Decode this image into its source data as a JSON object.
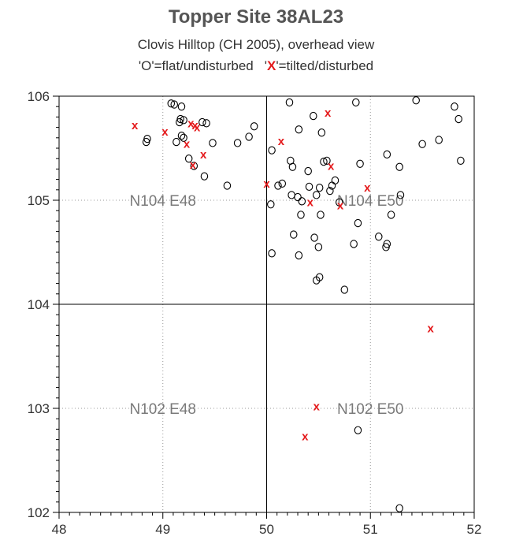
{
  "chart_data": {
    "type": "scatter",
    "title": "Topper Site 38AL23",
    "subtitle": "Clovis Hilltop (CH 2005), overhead view",
    "legend": {
      "prefix_o": "'O'",
      "text_o": "=flat/undisturbed",
      "prefix_x_open": "'",
      "marker_x": "X",
      "text_x": "'=tilted/disturbed"
    },
    "xlim": [
      48,
      52
    ],
    "ylim": [
      102,
      106
    ],
    "x_ticks": [
      "48",
      "49",
      "50",
      "51",
      "52"
    ],
    "y_ticks": [
      "102",
      "103",
      "104",
      "105",
      "106"
    ],
    "x_tick_values": [
      48,
      49,
      50,
      51,
      52
    ],
    "y_tick_values": [
      102,
      103,
      104,
      105,
      106
    ],
    "quadrant_labels": [
      {
        "text": "N104 E48",
        "x": 49,
        "y": 105
      },
      {
        "text": "N104 E50",
        "x": 51,
        "y": 105
      },
      {
        "text": "N102 E48",
        "x": 49,
        "y": 103
      },
      {
        "text": "N102 E50",
        "x": 51,
        "y": 103
      }
    ],
    "colors": {
      "flat": "#000000",
      "tilted": "#e41a1c",
      "grid": "#999999",
      "axis": "#000000"
    },
    "series": [
      {
        "marker": "O",
        "points": [
          [
            49.08,
            105.93
          ],
          [
            49.11,
            105.92
          ],
          [
            49.18,
            105.9
          ],
          [
            49.17,
            105.78
          ],
          [
            49.2,
            105.77
          ],
          [
            49.16,
            105.75
          ],
          [
            49.38,
            105.75
          ],
          [
            49.42,
            105.74
          ],
          [
            49.88,
            105.71
          ],
          [
            49.18,
            105.62
          ],
          [
            49.2,
            105.6
          ],
          [
            48.85,
            105.59
          ],
          [
            48.84,
            105.56
          ],
          [
            49.13,
            105.56
          ],
          [
            49.48,
            105.55
          ],
          [
            49.72,
            105.55
          ],
          [
            49.83,
            105.61
          ],
          [
            49.25,
            105.4
          ],
          [
            49.3,
            105.33
          ],
          [
            49.4,
            105.23
          ],
          [
            49.62,
            105.14
          ],
          [
            50.22,
            105.94
          ],
          [
            50.45,
            105.81
          ],
          [
            50.31,
            105.68
          ],
          [
            50.53,
            105.65
          ],
          [
            50.05,
            105.48
          ],
          [
            50.23,
            105.38
          ],
          [
            50.25,
            105.32
          ],
          [
            50.4,
            105.28
          ],
          [
            50.55,
            105.37
          ],
          [
            50.58,
            105.38
          ],
          [
            50.66,
            105.19
          ],
          [
            50.63,
            105.14
          ],
          [
            50.11,
            105.14
          ],
          [
            50.15,
            105.16
          ],
          [
            50.41,
            105.13
          ],
          [
            50.51,
            105.12
          ],
          [
            50.24,
            105.05
          ],
          [
            50.3,
            105.03
          ],
          [
            50.48,
            105.05
          ],
          [
            50.61,
            105.09
          ],
          [
            50.34,
            104.99
          ],
          [
            50.04,
            104.96
          ],
          [
            50.7,
            104.98
          ],
          [
            50.33,
            104.86
          ],
          [
            50.52,
            104.86
          ],
          [
            50.26,
            104.67
          ],
          [
            50.46,
            104.64
          ],
          [
            50.5,
            104.55
          ],
          [
            50.05,
            104.49
          ],
          [
            50.31,
            104.47
          ],
          [
            50.84,
            104.58
          ],
          [
            50.88,
            104.78
          ],
          [
            50.51,
            104.26
          ],
          [
            50.48,
            104.23
          ],
          [
            50.75,
            104.14
          ],
          [
            50.86,
            105.94
          ],
          [
            50.9,
            105.35
          ],
          [
            51.44,
            105.96
          ],
          [
            51.81,
            105.9
          ],
          [
            51.85,
            105.78
          ],
          [
            51.66,
            105.58
          ],
          [
            51.5,
            105.54
          ],
          [
            51.16,
            105.44
          ],
          [
            51.28,
            105.32
          ],
          [
            51.87,
            105.38
          ],
          [
            51.29,
            105.05
          ],
          [
            51.2,
            104.86
          ],
          [
            51.08,
            104.65
          ],
          [
            51.16,
            104.58
          ],
          [
            51.15,
            104.55
          ],
          [
            50.88,
            102.79
          ],
          [
            51.28,
            102.04
          ]
        ]
      },
      {
        "marker": "X",
        "points": [
          [
            48.73,
            105.72
          ],
          [
            49.02,
            105.66
          ],
          [
            49.27,
            105.74
          ],
          [
            49.31,
            105.72
          ],
          [
            49.33,
            105.7
          ],
          [
            49.23,
            105.54
          ],
          [
            49.39,
            105.44
          ],
          [
            49.29,
            105.34
          ],
          [
            50.59,
            105.84
          ],
          [
            50.14,
            105.57
          ],
          [
            50.62,
            105.33
          ],
          [
            50.0,
            105.16
          ],
          [
            50.97,
            105.12
          ],
          [
            50.42,
            104.98
          ],
          [
            50.71,
            104.95
          ],
          [
            51.58,
            103.77
          ],
          [
            50.48,
            103.02
          ],
          [
            50.37,
            102.73
          ]
        ]
      }
    ]
  }
}
